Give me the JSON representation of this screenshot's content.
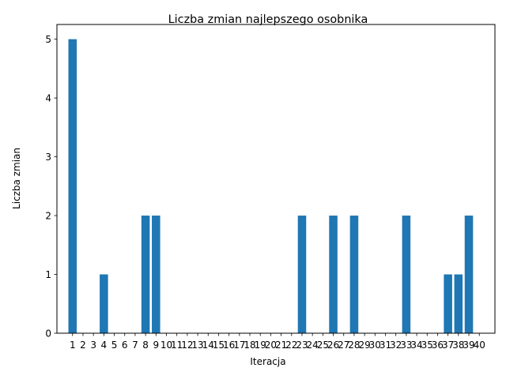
{
  "chart_data": {
    "type": "bar",
    "title": "Liczba zmian najlepszego osobnika",
    "xlabel": "Iteracja",
    "ylabel": "Liczba zmian",
    "categories": [
      "1",
      "2",
      "3",
      "4",
      "5",
      "6",
      "7",
      "8",
      "9",
      "10",
      "11",
      "12",
      "13",
      "14",
      "15",
      "16",
      "17",
      "18",
      "19",
      "20",
      "21",
      "22",
      "23",
      "24",
      "25",
      "26",
      "27",
      "28",
      "29",
      "30",
      "31",
      "32",
      "33",
      "34",
      "35",
      "36",
      "37",
      "38",
      "39",
      "40"
    ],
    "values": [
      5,
      0,
      0,
      1,
      0,
      0,
      0,
      2,
      2,
      0,
      0,
      0,
      0,
      0,
      0,
      0,
      0,
      0,
      0,
      0,
      0,
      0,
      2,
      0,
      0,
      2,
      0,
      2,
      0,
      0,
      0,
      0,
      2,
      0,
      0,
      0,
      1,
      1,
      2,
      0
    ],
    "yticks": [
      0,
      1,
      2,
      3,
      4,
      5
    ],
    "ylim": [
      0,
      5.25
    ],
    "xlim": [
      -1.5,
      40.5
    ],
    "grid": false,
    "bar_color": "#1f77b4"
  }
}
